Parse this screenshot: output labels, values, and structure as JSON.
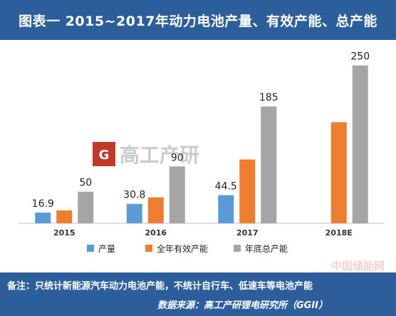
{
  "title": "图表一 2015~2017年动力电池产量、有效产能、总产能",
  "note": "备注：只统计新能源汽车动力电池产能，不统计自行车、低速车等电池产能",
  "source": "数据来源：高工产研锂电研究所（GGII）",
  "watermark": {
    "logo_letter": "G",
    "logo_text": "高工产研"
  },
  "corner_watermark": "中国储能网",
  "colors": {
    "header_bg": "#2d5e9c",
    "production": "#5b9bd5",
    "effective": "#ed7d31",
    "total": "#a5a5a5"
  },
  "chart_data": {
    "type": "bar",
    "categories": [
      "2015",
      "2016",
      "2017",
      "2018E"
    ],
    "series": [
      {
        "name": "产量",
        "values": [
          16.9,
          30.8,
          44.5,
          null
        ],
        "color": "#5b9bd5"
      },
      {
        "name": "全年有效产能",
        "values": [
          20.5,
          41,
          101,
          160
        ],
        "color": "#ed7d31"
      },
      {
        "name": "年底总产能",
        "values": [
          50,
          90,
          185,
          250
        ],
        "color": "#a5a5a5"
      }
    ],
    "data_labels": [
      {
        "series": 0,
        "index": 0,
        "text": "16.9"
      },
      {
        "series": 2,
        "index": 0,
        "text": "50"
      },
      {
        "series": 0,
        "index": 1,
        "text": "30.8"
      },
      {
        "series": 2,
        "index": 1,
        "text": "90"
      },
      {
        "series": 0,
        "index": 2,
        "text": "44.5"
      },
      {
        "series": 2,
        "index": 2,
        "text": "185"
      },
      {
        "series": 2,
        "index": 3,
        "text": "250"
      }
    ],
    "ylim": [
      0,
      270
    ],
    "grid": false,
    "legend": "bottom"
  }
}
